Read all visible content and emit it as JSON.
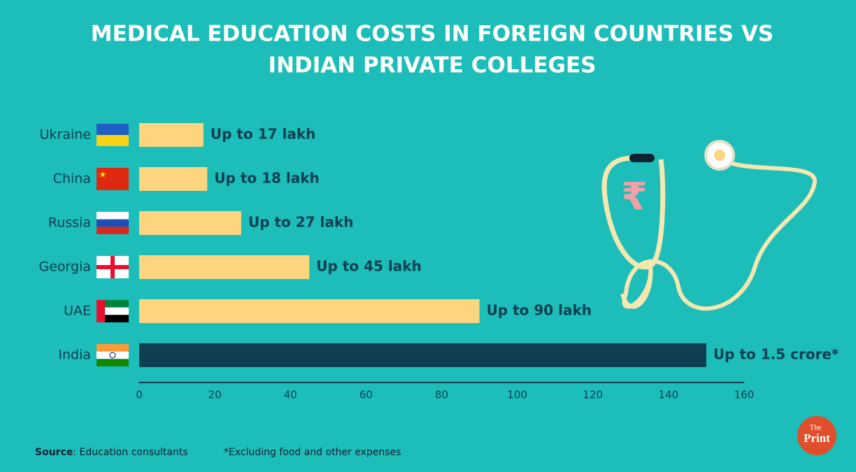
{
  "chart_data": {
    "type": "hbar",
    "title": [
      "MEDICAL EDUCATION COSTS IN FOREIGN COUNTRIES VS",
      "INDIAN PRIVATE COLLEGES"
    ],
    "categories": [
      "Ukraine",
      "China",
      "Russia",
      "Georgia",
      "UAE",
      "India"
    ],
    "values": [
      17,
      18,
      27,
      45,
      90,
      150
    ],
    "value_labels": [
      "Up to 17 lakh",
      "Up to 18 lakh",
      "Up to 27 lakh",
      "Up to 45 lakh",
      "Up to 90 lakh",
      "Up to 1.5 crore*"
    ],
    "colors": [
      "#fdd57e",
      "#fdd57e",
      "#fdd57e",
      "#fdd57e",
      "#fdd57e",
      "#0e3f52"
    ],
    "xlim": [
      0,
      160
    ],
    "xticks": [
      0,
      20,
      40,
      60,
      80,
      100,
      120,
      140,
      160
    ]
  },
  "footer": {
    "source_label": "Source",
    "source_text": ": Education consultants",
    "note": "*Excluding food and other expenses"
  },
  "logo": [
    "The",
    "Print"
  ]
}
